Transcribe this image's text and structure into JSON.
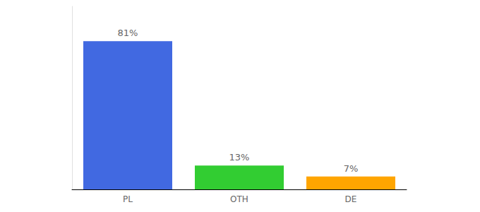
{
  "chart_data": {
    "type": "bar",
    "categories": [
      "PL",
      "OTH",
      "DE"
    ],
    "values": [
      81,
      13,
      7
    ],
    "value_labels": [
      "81%",
      "13%",
      "7%"
    ],
    "colors": [
      "#4169e1",
      "#32cd32",
      "#ffa500"
    ],
    "ylim": [
      0,
      100
    ],
    "data_labels": true,
    "tick_labels": "x",
    "grid": false
  }
}
